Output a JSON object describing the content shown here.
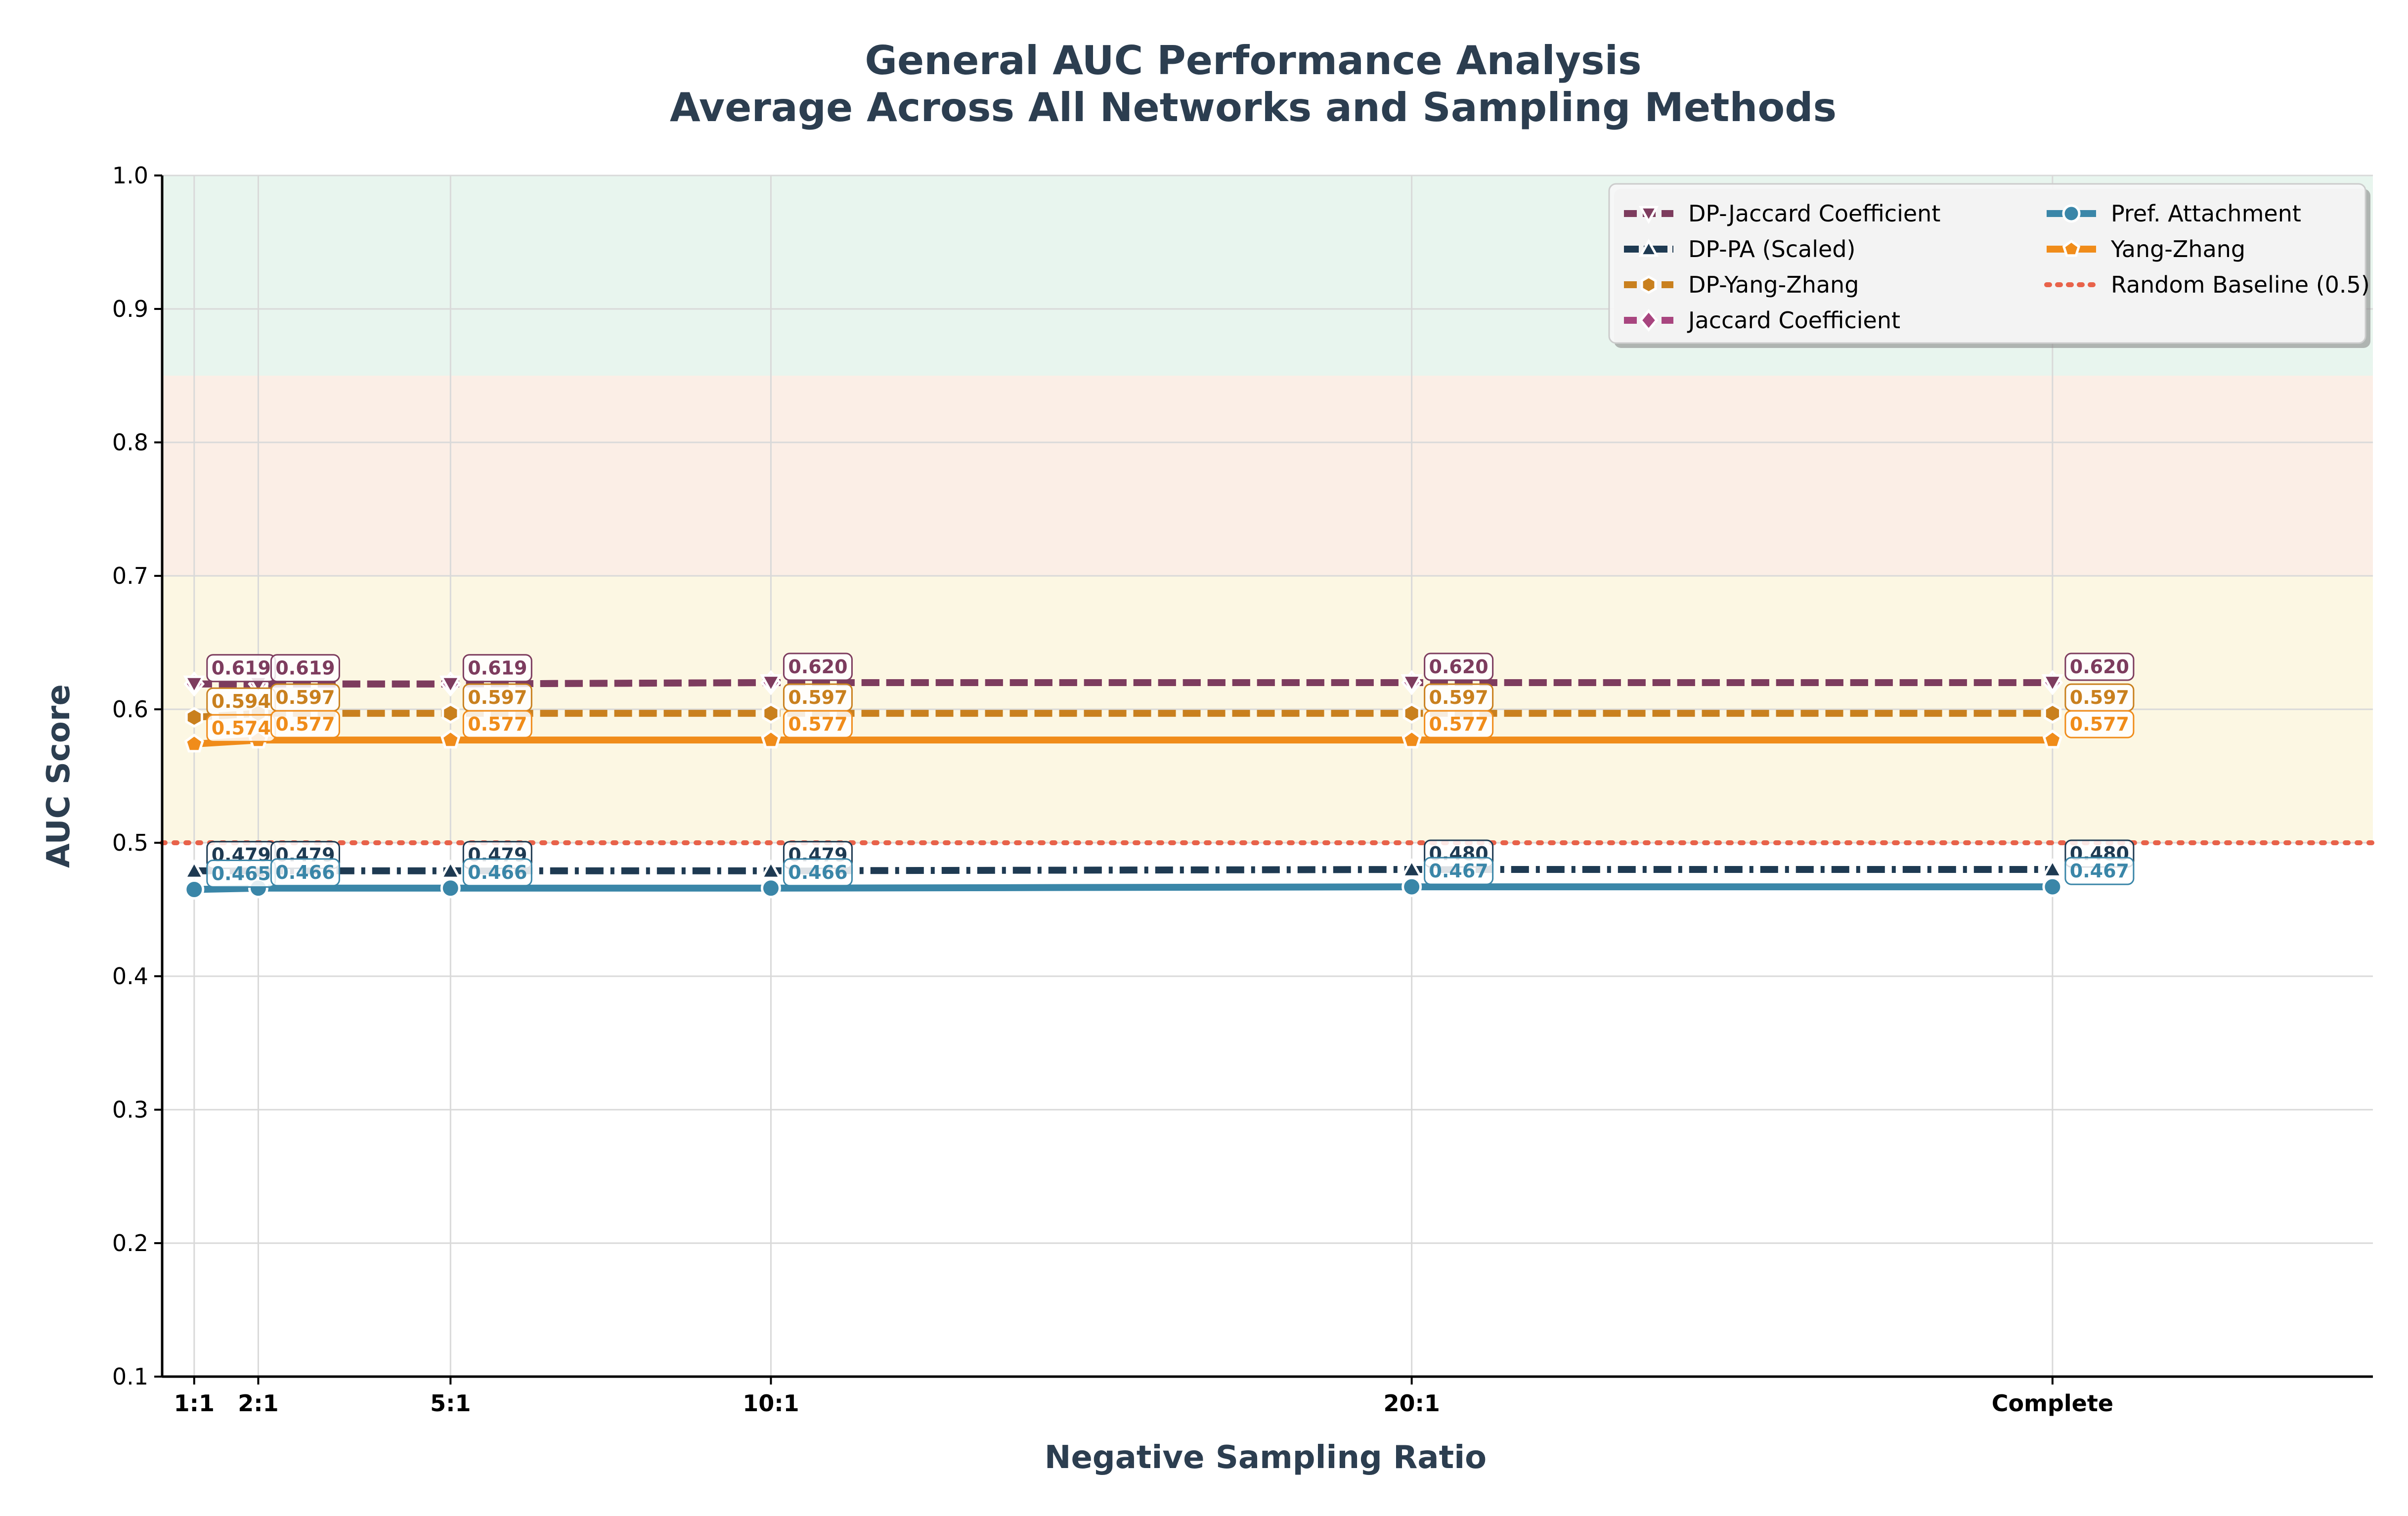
{
  "chart_data": {
    "type": "line",
    "title": "General AUC Performance Analysis",
    "subtitle": "Average Across All Networks and Sampling Methods",
    "xlabel": "Negative Sampling Ratio",
    "ylabel": "AUC Score",
    "categories": [
      "1:1",
      "2:1",
      "5:1",
      "10:1",
      "20:1",
      "Complete"
    ],
    "x": [
      1,
      2,
      5,
      10,
      20,
      30
    ],
    "xlim": [
      0.5,
      35
    ],
    "ylim": [
      0.1,
      1.0
    ],
    "yticks": [
      "0.1",
      "0.2",
      "0.3",
      "0.4",
      "0.5",
      "0.6",
      "0.7",
      "0.8",
      "0.9",
      "1.0"
    ],
    "grid": true,
    "legend_position": "top-right",
    "bands": [
      {
        "from": 0.85,
        "to": 1.0,
        "color": "#e8f5ee"
      },
      {
        "from": 0.7,
        "to": 0.85,
        "color": "#fbeee6"
      },
      {
        "from": 0.5,
        "to": 0.7,
        "color": "#fcf7e3"
      }
    ],
    "series": [
      {
        "name": "DP-Jaccard Coefficient",
        "color": "#7d3c5e",
        "dash": "dashed",
        "marker": "triangle-down",
        "values": [
          0.619,
          0.619,
          0.619,
          0.62,
          0.62,
          0.62
        ],
        "labels": [
          "0.619",
          "0.619",
          "0.619",
          "0.620",
          "0.620",
          "0.620"
        ]
      },
      {
        "name": "DP-PA (Scaled)",
        "color": "#1e3a52",
        "dash": "dashdot",
        "marker": "triangle-up",
        "values": [
          0.479,
          0.479,
          0.479,
          0.479,
          0.48,
          0.48
        ],
        "labels": [
          "0.479",
          "0.479",
          "0.479",
          "0.479",
          "0.480",
          "0.480"
        ]
      },
      {
        "name": "DP-Yang-Zhang",
        "color": "#c9801e",
        "dash": "dashed",
        "marker": "hexagon",
        "values": [
          0.594,
          0.597,
          0.597,
          0.597,
          0.597,
          0.597
        ],
        "labels": [
          "0.594",
          "0.597",
          "0.597",
          "0.597",
          "0.597",
          "0.597"
        ]
      },
      {
        "name": "Jaccard Coefficient",
        "color": "#a8457f",
        "dash": "dashed",
        "marker": "diamond",
        "values": [
          0.619,
          0.619,
          0.619,
          0.62,
          0.62,
          0.62
        ],
        "labels": []
      },
      {
        "name": "Pref. Attachment",
        "color": "#3a86a8",
        "dash": "solid",
        "marker": "circle",
        "values": [
          0.465,
          0.466,
          0.466,
          0.466,
          0.467,
          0.467
        ],
        "labels": [
          "0.465",
          "0.466",
          "0.466",
          "0.466",
          "0.467",
          "0.467"
        ]
      },
      {
        "name": "Yang-Zhang",
        "color": "#f08c1a",
        "dash": "solid",
        "marker": "pentagon",
        "values": [
          0.574,
          0.577,
          0.577,
          0.577,
          0.577,
          0.577
        ],
        "labels": [
          "0.574",
          "0.577",
          "0.577",
          "0.577",
          "0.577",
          "0.577"
        ]
      }
    ],
    "baseline": {
      "name": "Random Baseline (0.5)",
      "value": 0.5,
      "color": "#e8624a"
    }
  }
}
